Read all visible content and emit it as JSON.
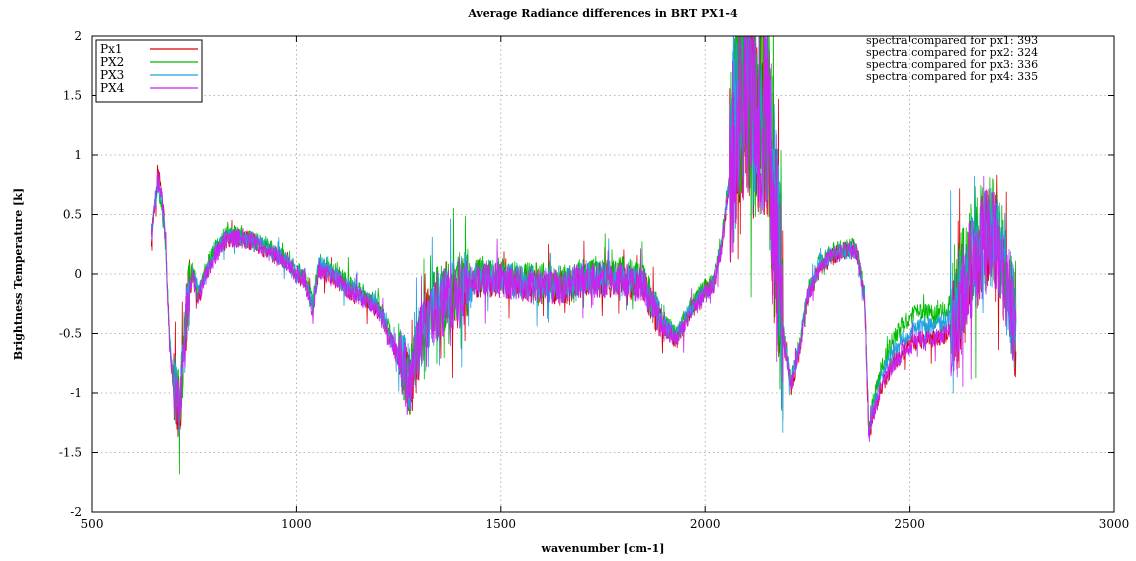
{
  "chart_data": {
    "type": "line",
    "title": "Average Radiance differences in BRT PX1-4",
    "xlabel": "wavenumber [cm-1]",
    "ylabel": "Brightness Temperature [k]",
    "xlim": [
      500,
      3000
    ],
    "ylim": [
      -2,
      2
    ],
    "xticks": [
      500,
      1000,
      1500,
      2000,
      2500,
      3000
    ],
    "yticks": [
      -2,
      -1.5,
      -1,
      -0.5,
      0,
      0.5,
      1,
      1.5,
      2
    ],
    "xtick_labels": [
      "500",
      "1000",
      "1500",
      "2000",
      "2500",
      "3000"
    ],
    "ytick_labels": [
      "-2",
      "-1.5",
      "-1",
      "-0.5",
      "0",
      "0.5",
      "1",
      "1.5",
      "2"
    ],
    "grid": true,
    "legend_position": "top-left",
    "annotations": [
      "spectra compared for px1: 393",
      "spectra compared for px2: 324",
      "spectra compared for px3: 336",
      "spectra compared for px4: 335"
    ],
    "x": [
      645,
      660,
      670,
      680,
      690,
      700,
      715,
      730,
      745,
      760,
      780,
      800,
      830,
      860,
      890,
      920,
      950,
      980,
      1000,
      1020,
      1040,
      1055,
      1070,
      1100,
      1130,
      1160,
      1200,
      1230,
      1260,
      1280,
      1300,
      1330,
      1360,
      1400,
      1450,
      1500,
      1550,
      1600,
      1650,
      1700,
      1750,
      1800,
      1850,
      1880,
      1900,
      1930,
      1960,
      1990,
      2020,
      2040,
      2060,
      2080,
      2100,
      2120,
      2150,
      2170,
      2190,
      2210,
      2230,
      2250,
      2280,
      2310,
      2340,
      2370,
      2390,
      2400,
      2410,
      2430,
      2460,
      2500,
      2530,
      2560,
      2590,
      2620,
      2650,
      2680,
      2710,
      2740,
      2760
    ],
    "series": [
      {
        "name": "Px1",
        "color": "#dd0000",
        "values": [
          0.3,
          0.85,
          0.75,
          0.3,
          -0.6,
          -0.95,
          -1.15,
          -0.4,
          0.0,
          -0.2,
          0.0,
          0.15,
          0.3,
          0.3,
          0.28,
          0.22,
          0.15,
          0.1,
          0.0,
          -0.05,
          -0.3,
          0.05,
          0.02,
          -0.05,
          -0.15,
          -0.2,
          -0.3,
          -0.55,
          -0.8,
          -0.95,
          -0.6,
          -0.3,
          -0.25,
          -0.15,
          -0.05,
          -0.05,
          -0.1,
          -0.1,
          -0.12,
          -0.05,
          -0.05,
          -0.05,
          -0.1,
          -0.35,
          -0.45,
          -0.55,
          -0.35,
          -0.2,
          -0.1,
          0.2,
          0.8,
          1.4,
          1.6,
          1.3,
          1.4,
          0.5,
          -0.5,
          -0.95,
          -0.65,
          -0.2,
          0.05,
          0.15,
          0.2,
          0.2,
          -0.2,
          -1.35,
          -1.2,
          -0.95,
          -0.75,
          -0.6,
          -0.55,
          -0.55,
          -0.5,
          -0.35,
          0.05,
          0.25,
          0.3,
          -0.2,
          -0.45
        ]
      },
      {
        "name": "PX2",
        "color": "#00bb00",
        "values": [
          0.35,
          0.7,
          0.6,
          0.25,
          -0.55,
          -0.9,
          -1.1,
          -0.35,
          0.05,
          -0.15,
          0.05,
          0.2,
          0.35,
          0.32,
          0.3,
          0.25,
          0.18,
          0.12,
          0.02,
          0.0,
          -0.25,
          0.1,
          0.08,
          0.0,
          -0.1,
          -0.15,
          -0.25,
          -0.5,
          -0.75,
          -0.9,
          -0.55,
          -0.25,
          -0.2,
          -0.1,
          0.0,
          0.0,
          -0.05,
          -0.05,
          -0.08,
          0.0,
          0.0,
          0.0,
          -0.05,
          -0.3,
          -0.4,
          -0.5,
          -0.3,
          -0.15,
          -0.05,
          0.25,
          0.85,
          1.45,
          1.65,
          1.35,
          1.45,
          0.55,
          -0.45,
          -0.9,
          -0.6,
          -0.15,
          0.1,
          0.18,
          0.22,
          0.22,
          -0.15,
          -1.3,
          -1.1,
          -0.8,
          -0.55,
          -0.35,
          -0.3,
          -0.35,
          -0.3,
          -0.15,
          0.15,
          0.35,
          0.4,
          -0.1,
          -0.35
        ]
      },
      {
        "name": "PX3",
        "color": "#22a0e0",
        "values": [
          0.32,
          0.75,
          0.65,
          0.28,
          -0.58,
          -0.92,
          -1.12,
          -0.38,
          0.02,
          -0.18,
          0.02,
          0.18,
          0.32,
          0.3,
          0.28,
          0.23,
          0.16,
          0.1,
          0.0,
          -0.03,
          -0.28,
          0.08,
          0.05,
          -0.03,
          -0.12,
          -0.18,
          -0.28,
          -0.52,
          -0.78,
          -0.92,
          -0.58,
          -0.28,
          -0.22,
          -0.12,
          -0.03,
          -0.03,
          -0.08,
          -0.08,
          -0.1,
          -0.03,
          -0.03,
          -0.03,
          -0.08,
          -0.32,
          -0.42,
          -0.52,
          -0.32,
          -0.18,
          -0.08,
          0.22,
          0.82,
          1.42,
          1.62,
          1.32,
          1.42,
          0.52,
          -0.48,
          -0.92,
          -0.62,
          -0.18,
          0.08,
          0.16,
          0.2,
          0.2,
          -0.18,
          -1.32,
          -1.15,
          -0.88,
          -0.65,
          -0.48,
          -0.42,
          -0.45,
          -0.4,
          -0.25,
          0.1,
          0.3,
          0.35,
          -0.15,
          -0.4
        ]
      },
      {
        "name": "PX4",
        "color": "#cc22ee",
        "values": [
          0.3,
          0.8,
          0.7,
          0.3,
          -0.6,
          -0.95,
          -1.2,
          -0.4,
          0.0,
          -0.2,
          0.0,
          0.15,
          0.3,
          0.3,
          0.28,
          0.22,
          0.15,
          0.1,
          0.0,
          -0.05,
          -0.3,
          0.05,
          0.0,
          -0.05,
          -0.15,
          -0.2,
          -0.3,
          -0.55,
          -0.8,
          -1.0,
          -0.6,
          -0.3,
          -0.25,
          -0.15,
          -0.05,
          -0.05,
          -0.1,
          -0.1,
          -0.12,
          -0.05,
          -0.05,
          -0.05,
          -0.1,
          -0.35,
          -0.45,
          -0.55,
          -0.35,
          -0.2,
          -0.1,
          0.2,
          0.8,
          1.4,
          1.6,
          1.3,
          1.4,
          0.5,
          -0.5,
          -0.95,
          -0.65,
          -0.2,
          0.05,
          0.15,
          0.2,
          0.2,
          -0.2,
          -1.35,
          -1.2,
          -0.95,
          -0.75,
          -0.6,
          -0.55,
          -0.55,
          -0.5,
          -0.35,
          0.05,
          0.25,
          0.3,
          -0.2,
          -0.45
        ]
      }
    ]
  }
}
